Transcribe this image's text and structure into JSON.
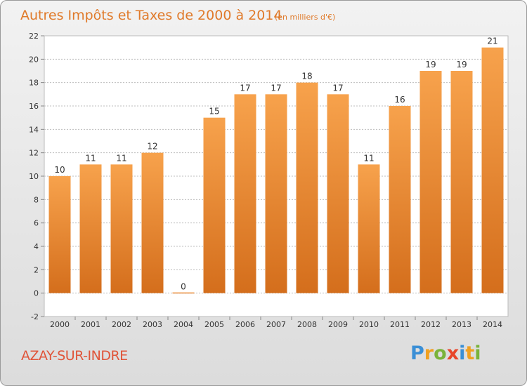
{
  "chart_data": {
    "type": "bar",
    "title": "Autres Impôts et Taxes de 2000 à 2014",
    "subtitle": "(en milliers d'€)",
    "categories": [
      "2000",
      "2001",
      "2002",
      "2003",
      "2004",
      "2005",
      "2006",
      "2007",
      "2008",
      "2009",
      "2010",
      "2011",
      "2012",
      "2013",
      "2014"
    ],
    "values": [
      10,
      11,
      11,
      12,
      0,
      15,
      17,
      17,
      18,
      17,
      11,
      16,
      19,
      19,
      21
    ],
    "ylim": [
      -2,
      22
    ],
    "yticks": [
      -2,
      0,
      2,
      4,
      6,
      8,
      10,
      12,
      14,
      16,
      18,
      20,
      22
    ],
    "xlabel": "",
    "ylabel": "",
    "grid": "horizontal-dotted",
    "bar_color": "#f0943c",
    "bar_color_dark": "#d97420"
  },
  "footer": {
    "commune": "AZAY-SUR-INDRE",
    "brand_letters": [
      {
        "ch": "P",
        "color": "#3a8fd6"
      },
      {
        "ch": "r",
        "color": "#f0a020"
      },
      {
        "ch": "o",
        "color": "#7ab33a"
      },
      {
        "ch": "x",
        "color": "#e8462a"
      },
      {
        "ch": "i",
        "color": "#3a8fd6"
      },
      {
        "ch": "t",
        "color": "#f0a020"
      },
      {
        "ch": "i",
        "color": "#7ab33a"
      }
    ]
  }
}
